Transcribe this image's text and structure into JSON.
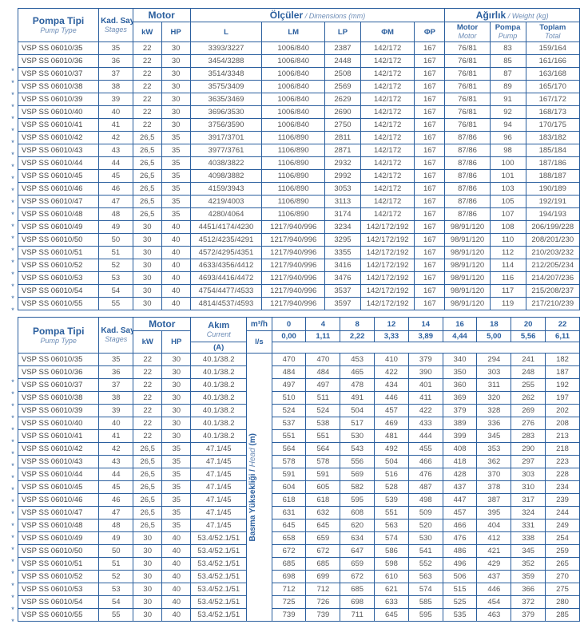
{
  "labels": {
    "pumpType": "Pompa Tipi",
    "pumpTypeSub": "Pump Type",
    "stages": "Kad. Sayısı",
    "stagesSub": "Stages",
    "motor": "Motor",
    "kW": "kW",
    "HP": "HP",
    "dimensions": "Ölçüler",
    "dimensionsSub": "Dimensions (mm)",
    "L": "L",
    "LM": "LM",
    "LP": "LP",
    "phiM": "ΦM",
    "phiP": "ΦP",
    "weight": "Ağırlık",
    "weightSub": "Weight (kg)",
    "motorW": "Motor",
    "motorWSub": "Motor",
    "pompa": "Pompa",
    "pompaSub": "Pump",
    "toplam": "Toplam",
    "toplamSub": "Total",
    "akim": "Akım",
    "akimSub": "Current",
    "A": "(A)",
    "m3h": "m³/h",
    "ls": "l/s",
    "basma": "Basma Yüksekliği",
    "basmaSub": "Head",
    "basmaUnit": "(m)"
  },
  "table1": {
    "rows": [
      {
        "m": "VSP SS 06010/35",
        "st": "35",
        "kw": "22",
        "hp": "30",
        "l": "3393/3227",
        "lm": "1006/840",
        "lp": "2387",
        "fm": "142/172",
        "fp": "167",
        "mw": "76/81",
        "pw": "83",
        "tw": "159/164"
      },
      {
        "m": "VSP SS 06010/36",
        "st": "36",
        "kw": "22",
        "hp": "30",
        "l": "3454/3288",
        "lm": "1006/840",
        "lp": "2448",
        "fm": "142/172",
        "fp": "167",
        "mw": "76/81",
        "pw": "85",
        "tw": "161/166"
      },
      {
        "m": "VSP SS 06010/37",
        "st": "37",
        "kw": "22",
        "hp": "30",
        "l": "3514/3348",
        "lm": "1006/840",
        "lp": "2508",
        "fm": "142/172",
        "fp": "167",
        "mw": "76/81",
        "pw": "87",
        "tw": "163/168"
      },
      {
        "m": "VSP SS 06010/38",
        "st": "38",
        "kw": "22",
        "hp": "30",
        "l": "3575/3409",
        "lm": "1006/840",
        "lp": "2569",
        "fm": "142/172",
        "fp": "167",
        "mw": "76/81",
        "pw": "89",
        "tw": "165/170"
      },
      {
        "m": "VSP SS 06010/39",
        "st": "39",
        "kw": "22",
        "hp": "30",
        "l": "3635/3469",
        "lm": "1006/840",
        "lp": "2629",
        "fm": "142/172",
        "fp": "167",
        "mw": "76/81",
        "pw": "91",
        "tw": "167/172"
      },
      {
        "m": "VSP SS 06010/40",
        "st": "40",
        "kw": "22",
        "hp": "30",
        "l": "3696/3530",
        "lm": "1006/840",
        "lp": "2690",
        "fm": "142/172",
        "fp": "167",
        "mw": "76/81",
        "pw": "92",
        "tw": "168/173"
      },
      {
        "m": "VSP SS 06010/41",
        "st": "41",
        "kw": "22",
        "hp": "30",
        "l": "3756/3590",
        "lm": "1006/840",
        "lp": "2750",
        "fm": "142/172",
        "fp": "167",
        "mw": "76/81",
        "pw": "94",
        "tw": "170/175"
      },
      {
        "m": "VSP SS 06010/42",
        "st": "42",
        "kw": "26,5",
        "hp": "35",
        "l": "3917/3701",
        "lm": "1106/890",
        "lp": "2811",
        "fm": "142/172",
        "fp": "167",
        "mw": "87/86",
        "pw": "96",
        "tw": "183/182"
      },
      {
        "m": "VSP SS 06010/43",
        "st": "43",
        "kw": "26,5",
        "hp": "35",
        "l": "3977/3761",
        "lm": "1106/890",
        "lp": "2871",
        "fm": "142/172",
        "fp": "167",
        "mw": "87/86",
        "pw": "98",
        "tw": "185/184"
      },
      {
        "m": "VSP SS 06010/44",
        "st": "44",
        "kw": "26,5",
        "hp": "35",
        "l": "4038/3822",
        "lm": "1106/890",
        "lp": "2932",
        "fm": "142/172",
        "fp": "167",
        "mw": "87/86",
        "pw": "100",
        "tw": "187/186"
      },
      {
        "m": "VSP SS 06010/45",
        "st": "45",
        "kw": "26,5",
        "hp": "35",
        "l": "4098/3882",
        "lm": "1106/890",
        "lp": "2992",
        "fm": "142/172",
        "fp": "167",
        "mw": "87/86",
        "pw": "101",
        "tw": "188/187"
      },
      {
        "m": "VSP SS 06010/46",
        "st": "46",
        "kw": "26,5",
        "hp": "35",
        "l": "4159/3943",
        "lm": "1106/890",
        "lp": "3053",
        "fm": "142/172",
        "fp": "167",
        "mw": "87/86",
        "pw": "103",
        "tw": "190/189"
      },
      {
        "m": "VSP SS 06010/47",
        "st": "47",
        "kw": "26,5",
        "hp": "35",
        "l": "4219/4003",
        "lm": "1106/890",
        "lp": "3113",
        "fm": "142/172",
        "fp": "167",
        "mw": "87/86",
        "pw": "105",
        "tw": "192/191"
      },
      {
        "m": "VSP SS 06010/48",
        "st": "48",
        "kw": "26,5",
        "hp": "35",
        "l": "4280/4064",
        "lm": "1106/890",
        "lp": "3174",
        "fm": "142/172",
        "fp": "167",
        "mw": "87/86",
        "pw": "107",
        "tw": "194/193"
      },
      {
        "m": "VSP SS 06010/49",
        "st": "49",
        "kw": "30",
        "hp": "40",
        "l": "4451/4174/4230",
        "lm": "1217/940/996",
        "lp": "3234",
        "fm": "142/172/192",
        "fp": "167",
        "mw": "98/91/120",
        "pw": "108",
        "tw": "206/199/228"
      },
      {
        "m": "VSP SS 06010/50",
        "st": "50",
        "kw": "30",
        "hp": "40",
        "l": "4512/4235/4291",
        "lm": "1217/940/996",
        "lp": "3295",
        "fm": "142/172/192",
        "fp": "167",
        "mw": "98/91/120",
        "pw": "110",
        "tw": "208/201/230"
      },
      {
        "m": "VSP SS 06010/51",
        "st": "51",
        "kw": "30",
        "hp": "40",
        "l": "4572/4295/4351",
        "lm": "1217/940/996",
        "lp": "3355",
        "fm": "142/172/192",
        "fp": "167",
        "mw": "98/91/120",
        "pw": "112",
        "tw": "210/203/232"
      },
      {
        "m": "VSP SS 06010/52",
        "st": "52",
        "kw": "30",
        "hp": "40",
        "l": "4633/4356/4412",
        "lm": "1217/940/996",
        "lp": "3416",
        "fm": "142/172/192",
        "fp": "167",
        "mw": "98/91/120",
        "pw": "114",
        "tw": "212/205/234"
      },
      {
        "m": "VSP SS 06010/53",
        "st": "53",
        "kw": "30",
        "hp": "40",
        "l": "4693/4416/4472",
        "lm": "1217/940/996",
        "lp": "3476",
        "fm": "142/172/192",
        "fp": "167",
        "mw": "98/91/120",
        "pw": "116",
        "tw": "214/207/236"
      },
      {
        "m": "VSP SS 06010/54",
        "st": "54",
        "kw": "30",
        "hp": "40",
        "l": "4754/4477/4533",
        "lm": "1217/940/996",
        "lp": "3537",
        "fm": "142/172/192",
        "fp": "167",
        "mw": "98/91/120",
        "pw": "117",
        "tw": "215/208/237"
      },
      {
        "m": "VSP SS 06010/55",
        "st": "55",
        "kw": "30",
        "hp": "40",
        "l": "4814/4537/4593",
        "lm": "1217/940/996",
        "lp": "3597",
        "fm": "142/172/192",
        "fp": "167",
        "mw": "98/91/120",
        "pw": "119",
        "tw": "217/210/239"
      }
    ]
  },
  "table2": {
    "flowHeaders": [
      "0",
      "4",
      "8",
      "12",
      "14",
      "16",
      "18",
      "20",
      "22"
    ],
    "lsHeaders": [
      "0,00",
      "1,11",
      "2,22",
      "3,33",
      "3,89",
      "4,44",
      "5,00",
      "5,56",
      "6,11"
    ],
    "rows": [
      {
        "m": "VSP SS 06010/35",
        "st": "35",
        "kw": "22",
        "hp": "30",
        "a": "40.1/38.2",
        "h": [
          "470",
          "470",
          "453",
          "410",
          "379",
          "340",
          "294",
          "241",
          "182"
        ]
      },
      {
        "m": "VSP SS 06010/36",
        "st": "36",
        "kw": "22",
        "hp": "30",
        "a": "40.1/38.2",
        "h": [
          "484",
          "484",
          "465",
          "422",
          "390",
          "350",
          "303",
          "248",
          "187"
        ]
      },
      {
        "m": "VSP SS 06010/37",
        "st": "37",
        "kw": "22",
        "hp": "30",
        "a": "40.1/38.2",
        "h": [
          "497",
          "497",
          "478",
          "434",
          "401",
          "360",
          "311",
          "255",
          "192"
        ]
      },
      {
        "m": "VSP SS 06010/38",
        "st": "38",
        "kw": "22",
        "hp": "30",
        "a": "40.1/38.2",
        "h": [
          "510",
          "511",
          "491",
          "446",
          "411",
          "369",
          "320",
          "262",
          "197"
        ]
      },
      {
        "m": "VSP SS 06010/39",
        "st": "39",
        "kw": "22",
        "hp": "30",
        "a": "40.1/38.2",
        "h": [
          "524",
          "524",
          "504",
          "457",
          "422",
          "379",
          "328",
          "269",
          "202"
        ]
      },
      {
        "m": "VSP SS 06010/40",
        "st": "40",
        "kw": "22",
        "hp": "30",
        "a": "40.1/38.2",
        "h": [
          "537",
          "538",
          "517",
          "469",
          "433",
          "389",
          "336",
          "276",
          "208"
        ]
      },
      {
        "m": "VSP SS 06010/41",
        "st": "41",
        "kw": "22",
        "hp": "30",
        "a": "40.1/38.2",
        "h": [
          "551",
          "551",
          "530",
          "481",
          "444",
          "399",
          "345",
          "283",
          "213"
        ]
      },
      {
        "m": "VSP SS 06010/42",
        "st": "42",
        "kw": "26,5",
        "hp": "35",
        "a": "47.1/45",
        "h": [
          "564",
          "564",
          "543",
          "492",
          "455",
          "408",
          "353",
          "290",
          "218"
        ]
      },
      {
        "m": "VSP SS 06010/43",
        "st": "43",
        "kw": "26,5",
        "hp": "35",
        "a": "47.1/45",
        "h": [
          "578",
          "578",
          "556",
          "504",
          "466",
          "418",
          "362",
          "297",
          "223"
        ]
      },
      {
        "m": "VSP SS 06010/44",
        "st": "44",
        "kw": "26,5",
        "hp": "35",
        "a": "47.1/45",
        "h": [
          "591",
          "591",
          "569",
          "516",
          "476",
          "428",
          "370",
          "303",
          "228"
        ]
      },
      {
        "m": "VSP SS 06010/45",
        "st": "45",
        "kw": "26,5",
        "hp": "35",
        "a": "47.1/45",
        "h": [
          "604",
          "605",
          "582",
          "528",
          "487",
          "437",
          "378",
          "310",
          "234"
        ]
      },
      {
        "m": "VSP SS 06010/46",
        "st": "46",
        "kw": "26,5",
        "hp": "35",
        "a": "47.1/45",
        "h": [
          "618",
          "618",
          "595",
          "539",
          "498",
          "447",
          "387",
          "317",
          "239"
        ]
      },
      {
        "m": "VSP SS 06010/47",
        "st": "47",
        "kw": "26,5",
        "hp": "35",
        "a": "47.1/45",
        "h": [
          "631",
          "632",
          "608",
          "551",
          "509",
          "457",
          "395",
          "324",
          "244"
        ]
      },
      {
        "m": "VSP SS 06010/48",
        "st": "48",
        "kw": "26,5",
        "hp": "35",
        "a": "47.1/45",
        "h": [
          "645",
          "645",
          "620",
          "563",
          "520",
          "466",
          "404",
          "331",
          "249"
        ]
      },
      {
        "m": "VSP SS 06010/49",
        "st": "49",
        "kw": "30",
        "hp": "40",
        "a": "53.4/52.1/51",
        "h": [
          "658",
          "659",
          "634",
          "574",
          "530",
          "476",
          "412",
          "338",
          "254"
        ]
      },
      {
        "m": "VSP SS 06010/50",
        "st": "50",
        "kw": "30",
        "hp": "40",
        "a": "53.4/52.1/51",
        "h": [
          "672",
          "672",
          "647",
          "586",
          "541",
          "486",
          "421",
          "345",
          "259"
        ]
      },
      {
        "m": "VSP SS 06010/51",
        "st": "51",
        "kw": "30",
        "hp": "40",
        "a": "53.4/52.1/51",
        "h": [
          "685",
          "685",
          "659",
          "598",
          "552",
          "496",
          "429",
          "352",
          "265"
        ]
      },
      {
        "m": "VSP SS 06010/52",
        "st": "52",
        "kw": "30",
        "hp": "40",
        "a": "53.4/52.1/51",
        "h": [
          "698",
          "699",
          "672",
          "610",
          "563",
          "506",
          "437",
          "359",
          "270"
        ]
      },
      {
        "m": "VSP SS 06010/53",
        "st": "53",
        "kw": "30",
        "hp": "40",
        "a": "53.4/52.1/51",
        "h": [
          "712",
          "712",
          "685",
          "621",
          "574",
          "515",
          "446",
          "366",
          "275"
        ]
      },
      {
        "m": "VSP SS 06010/54",
        "st": "54",
        "kw": "30",
        "hp": "40",
        "a": "53.4/52.1/51",
        "h": [
          "725",
          "726",
          "698",
          "633",
          "585",
          "525",
          "454",
          "372",
          "280"
        ]
      },
      {
        "m": "VSP SS 06010/55",
        "st": "55",
        "kw": "30",
        "hp": "40",
        "a": "53.4/52.1/51",
        "h": [
          "739",
          "739",
          "711",
          "645",
          "595",
          "535",
          "463",
          "379",
          "285"
        ]
      }
    ]
  },
  "style": {
    "border_color": "#2b5f9e",
    "header_text_color": "#2b5f9e",
    "body_text_color": "#555555",
    "sub_text_color": "#6b8bb5",
    "background": "#ffffff"
  }
}
